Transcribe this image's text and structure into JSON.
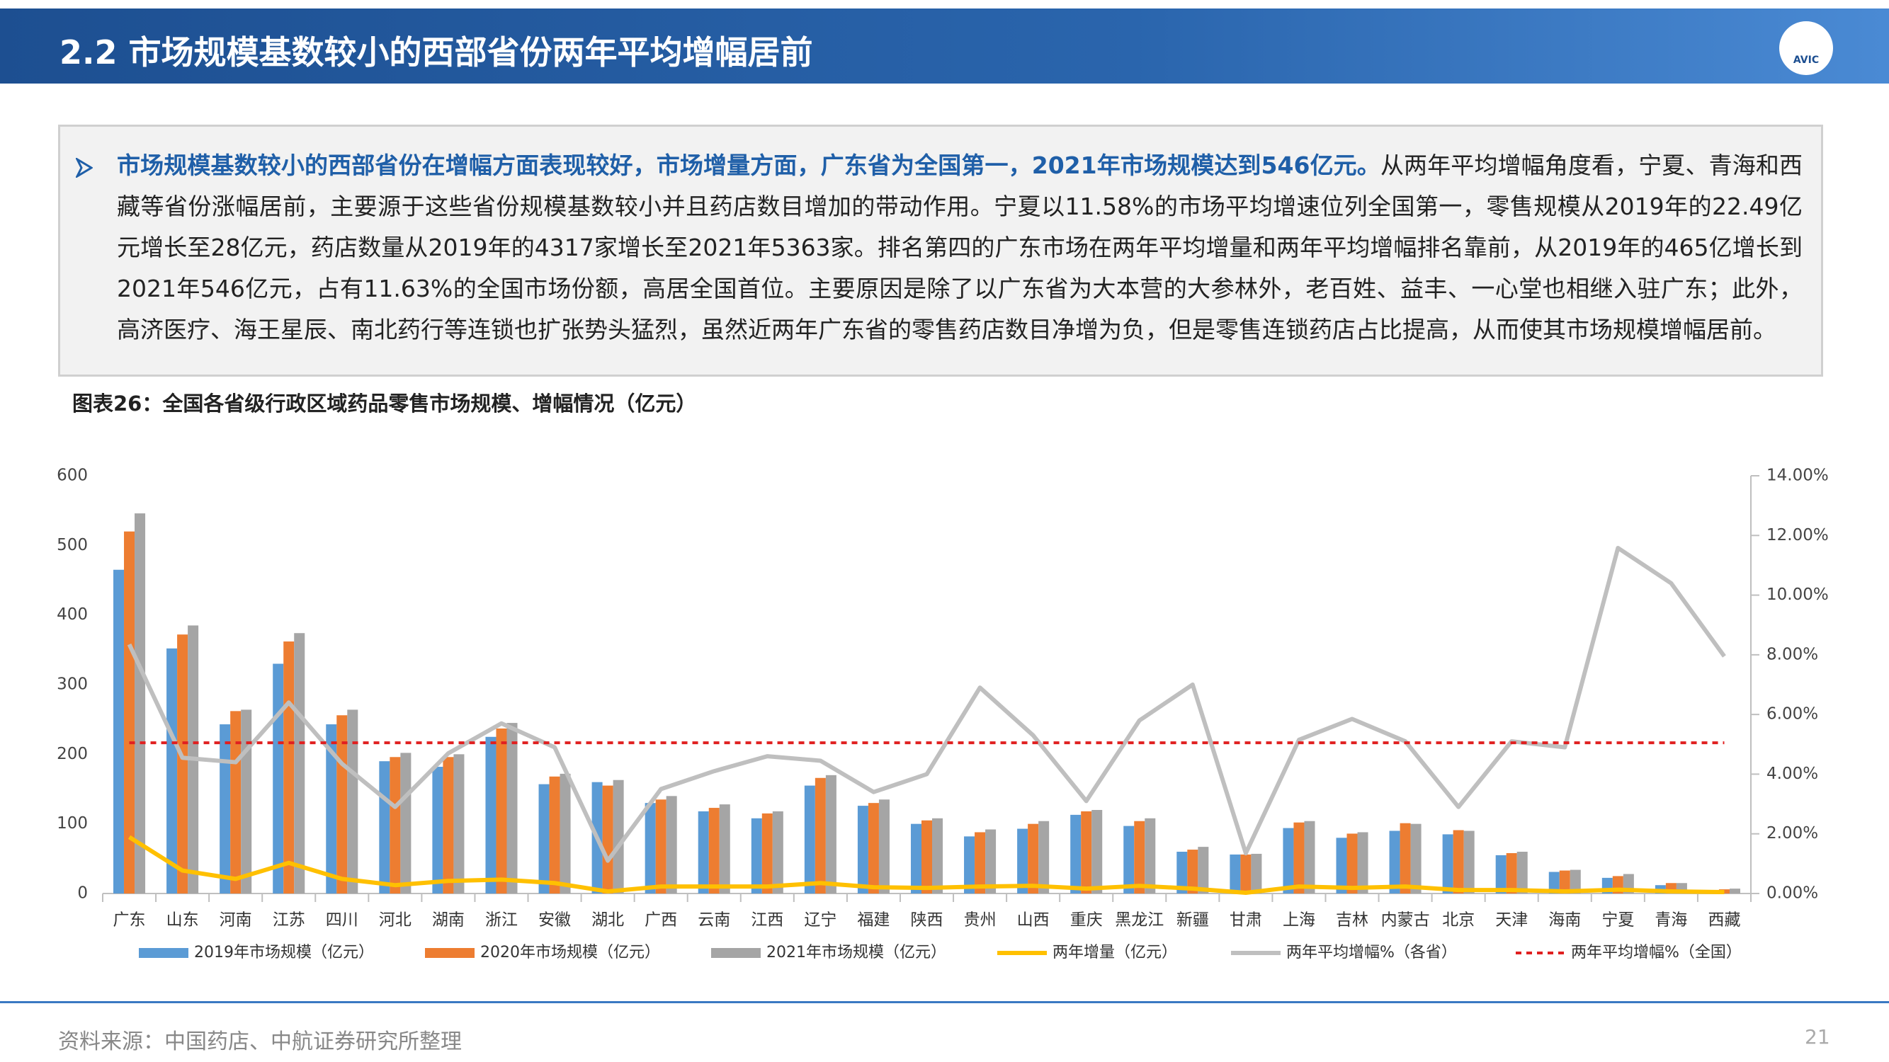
{
  "header": {
    "title": "2.2 市场规模基数较小的西部省份两年平均增幅居前",
    "logo": "AVIC"
  },
  "summary": {
    "highlight": "市场规模基数较小的西部省份在增幅方面表现较好，市场增量方面，广东省为全国第一，2021年市场规模达到546亿元。",
    "body": "从两年平均增幅角度看，宁夏、青海和西藏等省份涨幅居前，主要源于这些省份规模基数较小并且药店数目增加的带动作用。宁夏以11.58%的市场平均增速位列全国第一，零售规模从2019年的22.49亿元增长至28亿元，药店数量从2019年的4317家增长至2021年5363家。排名第四的广东市场在两年平均增量和两年平均增幅排名靠前，从2019年的465亿增长到2021年546亿元，占有11.63%的全国市场份额，高居全国首位。主要原因是除了以广东省为大本营的大参林外，老百姓、益丰、一心堂也相继入驻广东；此外，高济医疗、海王星辰、南北药行等连锁也扩张势头猛烈，虽然近两年广东省的零售药店数目净增为负，但是零售连锁药店占比提高，从而使其市场规模增幅居前。"
  },
  "chart_data": {
    "type": "bar",
    "title": "图表26：全国各省级行政区域药品零售市场规模、增幅情况（亿元）",
    "categories": [
      "广东",
      "山东",
      "河南",
      "江苏",
      "四川",
      "河北",
      "湖南",
      "浙江",
      "安徽",
      "湖北",
      "广西",
      "云南",
      "江西",
      "辽宁",
      "福建",
      "陕西",
      "贵州",
      "山西",
      "重庆",
      "黑龙江",
      "新疆",
      "甘肃",
      "上海",
      "吉林",
      "内蒙古",
      "北京",
      "天津",
      "海南",
      "宁夏",
      "青海",
      "西藏"
    ],
    "series": [
      {
        "name": "2019年市场规模（亿元）",
        "type": "bar",
        "color": "#5b9bd5",
        "values": [
          465,
          352,
          243,
          330,
          243,
          190,
          182,
          225,
          157,
          160,
          130,
          118,
          108,
          155,
          126,
          100,
          82,
          93,
          113,
          97,
          60,
          56,
          94,
          80,
          90,
          85,
          55,
          31,
          22.49,
          12,
          5
        ]
      },
      {
        "name": "2020年市场规模（亿元）",
        "type": "bar",
        "color": "#ed7d31",
        "values": [
          520,
          372,
          262,
          362,
          256,
          196,
          196,
          237,
          168,
          155,
          135,
          123,
          115,
          166,
          130,
          105,
          88,
          100,
          118,
          104,
          63,
          56,
          102,
          86,
          101,
          91,
          58,
          33,
          25,
          15,
          6
        ]
      },
      {
        "name": "2021年市场规模（亿元）",
        "type": "bar",
        "color": "#a5a5a5",
        "values": [
          546,
          385,
          264,
          374,
          264,
          202,
          200,
          245,
          172,
          163,
          140,
          128,
          118,
          170,
          135,
          108,
          92,
          104,
          120,
          108,
          67,
          57,
          104,
          88,
          100,
          90,
          60,
          34,
          28,
          15,
          7
        ]
      },
      {
        "name": "两年增量（亿元）",
        "type": "line",
        "color": "#ffc000",
        "values": [
          81,
          33,
          21,
          44,
          21,
          12,
          18,
          20,
          15,
          3,
          10,
          10,
          10,
          15,
          9,
          8,
          10,
          11,
          7,
          11,
          7,
          1,
          10,
          8,
          10,
          5,
          5,
          3,
          5.51,
          3,
          2
        ]
      },
      {
        "name": "两年平均增幅%（各省）",
        "type": "line",
        "color": "#bfbfbf",
        "axis": "y2",
        "values": [
          8.35,
          4.55,
          4.4,
          6.4,
          4.35,
          2.9,
          4.7,
          5.7,
          4.9,
          1.1,
          3.5,
          4.1,
          4.6,
          4.45,
          3.4,
          4.0,
          6.9,
          5.3,
          3.1,
          5.8,
          7.0,
          1.35,
          5.15,
          5.85,
          5.1,
          2.9,
          5.1,
          4.9,
          11.58,
          10.4,
          7.95
        ]
      },
      {
        "name": "两年平均增幅%（全国）",
        "type": "line",
        "color": "#e02020",
        "axis": "y2",
        "line_style": "dashed",
        "values": [
          5.05,
          5.05,
          5.05,
          5.05,
          5.05,
          5.05,
          5.05,
          5.05,
          5.05,
          5.05,
          5.05,
          5.05,
          5.05,
          5.05,
          5.05,
          5.05,
          5.05,
          5.05,
          5.05,
          5.05,
          5.05,
          5.05,
          5.05,
          5.05,
          5.05,
          5.05,
          5.05,
          5.05,
          5.05,
          5.05,
          5.05
        ]
      }
    ],
    "ylim": [
      0,
      600
    ],
    "yticks": [
      0,
      100,
      200,
      300,
      400,
      500,
      600
    ],
    "y2lim": [
      0,
      14
    ],
    "y2ticks": [
      {
        "value": 0,
        "label": "0.00%"
      },
      {
        "value": 2,
        "label": "2.00%"
      },
      {
        "value": 4,
        "label": "4.00%"
      },
      {
        "value": 6,
        "label": "6.00%"
      },
      {
        "value": 8,
        "label": "8.00%"
      },
      {
        "value": 10,
        "label": "10.00%"
      },
      {
        "value": 12,
        "label": "12.00%"
      },
      {
        "value": 14,
        "label": "14.00%"
      }
    ],
    "grid": false,
    "legend": "bottom"
  },
  "footer": {
    "source": "资料来源：中国药店、中航证券研究所整理",
    "page": "21"
  }
}
